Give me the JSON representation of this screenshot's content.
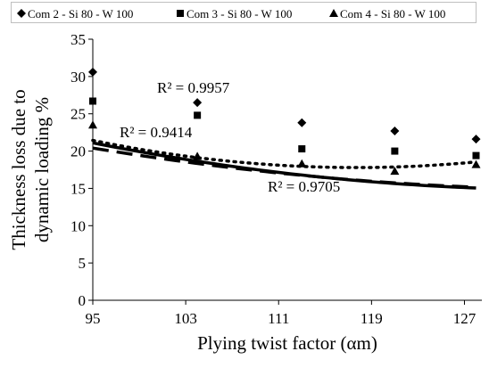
{
  "chart_data": {
    "type": "scatter",
    "xlabel": "Plying twist factor (αm)",
    "ylabel_lines": [
      "Thickness  loss due to",
      "dynamic loading %"
    ],
    "xlim": [
      95,
      128.5
    ],
    "ylim": [
      0,
      35
    ],
    "x_ticks": [
      95,
      103,
      111,
      119,
      127
    ],
    "y_ticks": [
      0,
      5,
      10,
      15,
      20,
      25,
      30,
      35
    ],
    "grid": false,
    "legend_position": "top",
    "series": [
      {
        "name": "Com 2 - Si 80 - W 100",
        "marker": "diamond",
        "line_style": "solid",
        "x": [
          95,
          104,
          113,
          121,
          128
        ],
        "y": [
          30.6,
          26.5,
          23.8,
          22.7,
          21.6
        ],
        "trend_r2_label": "R² = 0.9957",
        "trend_coef": [
          84.16,
          -1.0203,
          0.003753
        ]
      },
      {
        "name": "Com 3 - Si 80 - W 100",
        "marker": "square",
        "line_style": "dashed",
        "x": [
          95,
          104,
          113,
          121,
          128
        ],
        "y": [
          26.7,
          24.8,
          20.3,
          20.0,
          19.4
        ],
        "trend_r2_label": "R² = 0.9414",
        "trend_coef": [
          71.19,
          -0.8133,
          0.002934
        ]
      },
      {
        "name": "Com 4 - Si 80 - W 100",
        "marker": "triangle",
        "line_style": "dotted",
        "x": [
          95,
          104,
          113,
          121,
          128
        ],
        "y": [
          23.5,
          19.3,
          18.3,
          17.3,
          18.2
        ],
        "trend_r2_label": "R² = 0.9705",
        "trend_coef": [
          115.7,
          -1.6635,
          0.007066
        ]
      }
    ]
  }
}
